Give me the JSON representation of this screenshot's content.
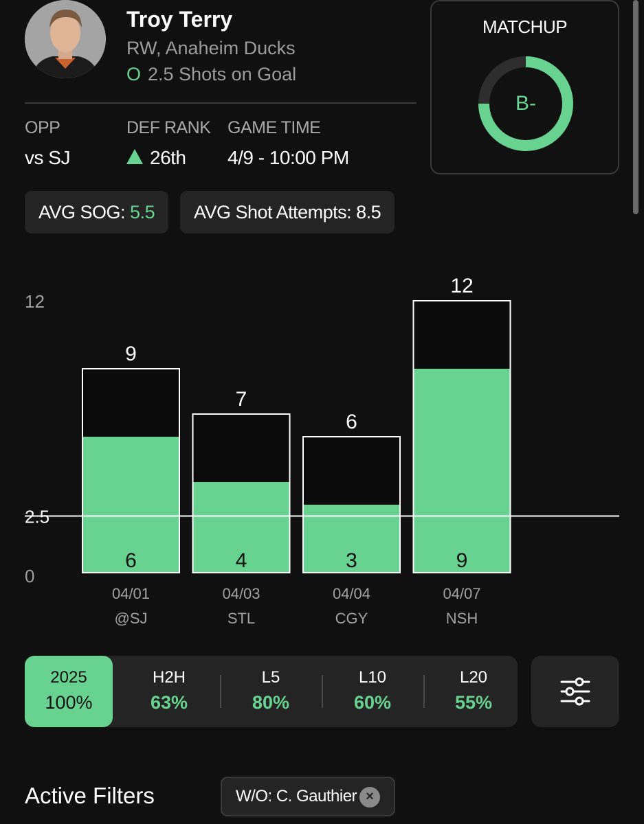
{
  "player": {
    "name": "Troy Terry",
    "position_team": "RW, Anaheim Ducks",
    "prop_side": "O",
    "prop_line": "2.5 Shots on Goal"
  },
  "game_info": {
    "opp_label": "OPP",
    "opp_value": "vs SJ",
    "def_rank_label": "DEF RANK",
    "def_rank_value": "26th",
    "game_time_label": "GAME TIME",
    "game_time_value": "4/9 - 10:00 PM"
  },
  "matchup": {
    "title": "MATCHUP",
    "grade": "B-",
    "ring_fill_fraction": 0.75
  },
  "averages": {
    "sog_label": "AVG SOG:",
    "sog_value": "5.5",
    "attempts_label": "AVG Shot Attempts:",
    "attempts_value": "8.5"
  },
  "hit_rates": [
    {
      "label": "2025",
      "value": "100%",
      "active": true
    },
    {
      "label": "H2H",
      "value": "63%",
      "active": false
    },
    {
      "label": "L5",
      "value": "80%",
      "active": false
    },
    {
      "label": "L10",
      "value": "60%",
      "active": false
    },
    {
      "label": "L20",
      "value": "55%",
      "active": false
    }
  ],
  "filters": {
    "title": "Active Filters",
    "chips": [
      {
        "label": "W/O: C. Gauthier"
      }
    ]
  },
  "icons": {
    "filter": "sliders-icon",
    "close": "close-icon",
    "up": "triangle-up-icon"
  },
  "colors": {
    "accent": "#68d391",
    "background": "#101010",
    "card": "#242424"
  },
  "chart_data": {
    "type": "bar",
    "categories": [
      "04/01",
      "04/03",
      "04/04",
      "04/07"
    ],
    "opponents": [
      "@SJ",
      "STL",
      "CGY",
      "NSH"
    ],
    "series": [
      {
        "name": "Shot Attempts",
        "values": [
          9,
          7,
          6,
          12
        ]
      },
      {
        "name": "Shots on Goal",
        "values": [
          6,
          4,
          3,
          9
        ]
      }
    ],
    "line": 2.5,
    "ylim": [
      0,
      12
    ],
    "y_ticks": [
      "12",
      "2.5",
      "0"
    ]
  }
}
